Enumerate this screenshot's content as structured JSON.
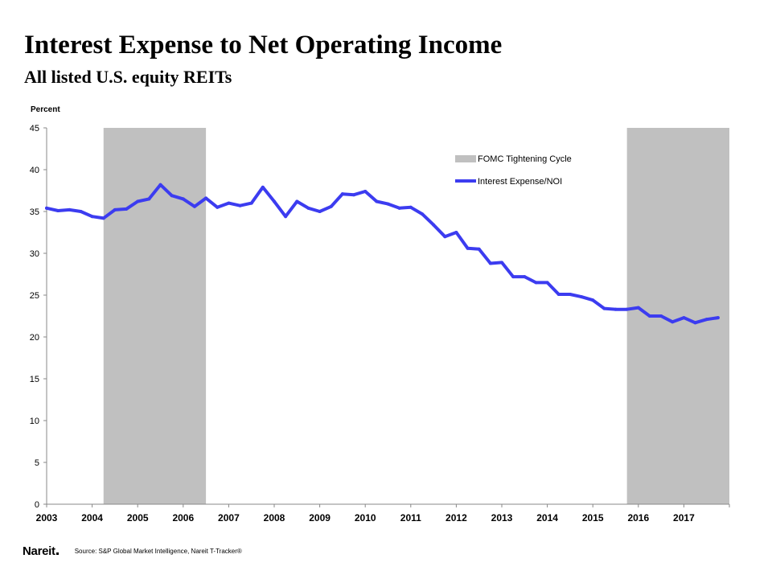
{
  "chart_data": {
    "type": "line",
    "title": "Interest Expense to Net Operating Income",
    "subtitle": "All listed U.S. equity REITs",
    "ylabel": "Percent",
    "ylim": [
      0,
      45
    ],
    "yticks": [
      0,
      5,
      10,
      15,
      20,
      25,
      30,
      35,
      40,
      45
    ],
    "xlim": [
      2003,
      2018
    ],
    "xticks": [
      "2003",
      "2004",
      "2005",
      "2006",
      "2007",
      "2008",
      "2009",
      "2010",
      "2011",
      "2012",
      "2013",
      "2014",
      "2015",
      "2016",
      "2017"
    ],
    "grid": false,
    "legend_position": "top-right",
    "shaded_label": "FOMC Tightening Cycle",
    "shaded_periods": [
      [
        2004.25,
        2006.5
      ],
      [
        2015.75,
        2018.0
      ]
    ],
    "shaded_color": "#c0c0c0",
    "series": [
      {
        "name": "Interest Expense/NOI",
        "color": "#3c3cf0",
        "x": [
          2003.0,
          2003.25,
          2003.5,
          2003.75,
          2004.0,
          2004.25,
          2004.5,
          2004.75,
          2005.0,
          2005.25,
          2005.5,
          2005.75,
          2006.0,
          2006.25,
          2006.5,
          2006.75,
          2007.0,
          2007.25,
          2007.5,
          2007.75,
          2008.0,
          2008.25,
          2008.5,
          2008.75,
          2009.0,
          2009.25,
          2009.5,
          2009.75,
          2010.0,
          2010.25,
          2010.5,
          2010.75,
          2011.0,
          2011.25,
          2011.5,
          2011.75,
          2012.0,
          2012.25,
          2012.5,
          2012.75,
          2013.0,
          2013.25,
          2013.5,
          2013.75,
          2014.0,
          2014.25,
          2014.5,
          2014.75,
          2015.0,
          2015.25,
          2015.5,
          2015.75,
          2016.0,
          2016.25,
          2016.5,
          2016.75,
          2017.0,
          2017.25,
          2017.5,
          2017.75
        ],
        "values": [
          35.4,
          35.1,
          35.2,
          35.0,
          34.4,
          34.2,
          35.2,
          35.3,
          36.2,
          36.5,
          38.2,
          36.9,
          36.5,
          35.6,
          36.6,
          35.5,
          36.0,
          35.7,
          36.0,
          37.9,
          36.2,
          34.4,
          36.2,
          35.4,
          35.0,
          35.6,
          37.1,
          37.0,
          37.4,
          36.2,
          35.9,
          35.4,
          35.5,
          34.7,
          33.4,
          32.0,
          32.5,
          30.6,
          30.5,
          28.8,
          28.9,
          27.2,
          27.2,
          26.5,
          26.5,
          25.1,
          25.1,
          24.8,
          24.4,
          23.4,
          23.3,
          23.3,
          23.5,
          22.5,
          22.5,
          21.8,
          22.3,
          21.7,
          22.1,
          22.3
        ]
      }
    ]
  },
  "footer": {
    "logo": "Nareit",
    "source": "Source: S&P Global Market Intelligence, Nareit T-Tracker®"
  }
}
